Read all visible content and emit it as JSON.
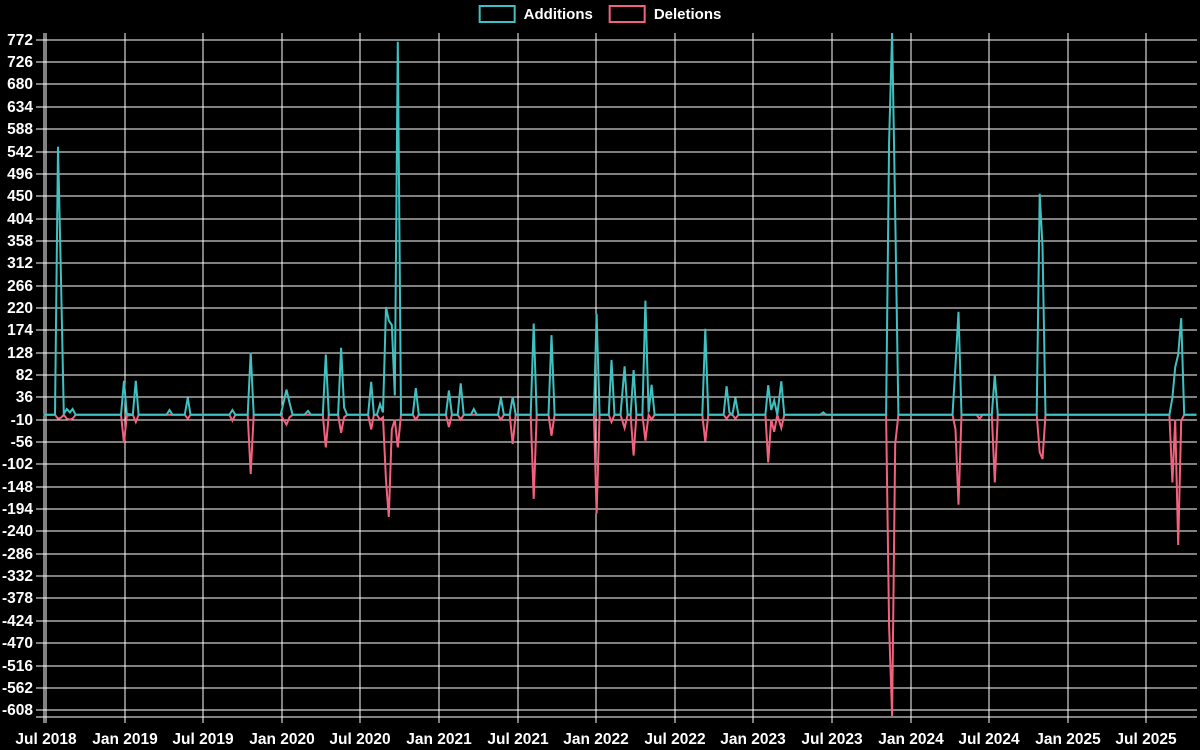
{
  "page": {
    "background": "#000000"
  },
  "chart_data": {
    "type": "line",
    "title": "",
    "legend_position": "top-center",
    "grid": true,
    "x_axis": {
      "tick_labels": [
        "Jul 2018",
        "Jan 2019",
        "Jul 2019",
        "Jan 2020",
        "Jul 2020",
        "Jan 2021",
        "Jul 2021",
        "Jan 2022",
        "Jul 2022",
        "Jan 2023",
        "Jul 2023",
        "Jan 2024",
        "Jul 2024",
        "Jan 2025",
        "Jul 2025"
      ],
      "start_date": "2018-07-01",
      "months_per_tick": 6
    },
    "y_axis": {
      "tick_values": [
        772,
        726,
        680,
        634,
        588,
        542,
        496,
        450,
        404,
        358,
        312,
        266,
        220,
        174,
        128,
        82,
        36,
        -10,
        -56,
        -102,
        -148,
        -194,
        -240,
        -286,
        -332,
        -378,
        -424,
        -470,
        -516,
        -562,
        -608
      ],
      "range": [
        -622,
        786
      ]
    },
    "series": [
      {
        "name": "Additions",
        "color": "#3fc1c1",
        "key": "additions"
      },
      {
        "name": "Deletions",
        "color": "#f4617f",
        "key": "deletions"
      }
    ],
    "columns": [
      "week",
      "additions",
      "deletions"
    ],
    "rows": [
      [
        "2018-06-26",
        0,
        0
      ],
      [
        "2018-07-22",
        0,
        0
      ],
      [
        "2018-07-29",
        552,
        -8
      ],
      [
        "2018-08-05",
        298,
        -6
      ],
      [
        "2018-08-12",
        2,
        0
      ],
      [
        "2018-08-19",
        12,
        -8
      ],
      [
        "2018-08-26",
        5,
        -10
      ],
      [
        "2018-09-02",
        12,
        -8
      ],
      [
        "2018-09-09",
        0,
        0
      ],
      [
        "2018-12-23",
        0,
        0
      ],
      [
        "2018-12-30",
        70,
        -58
      ],
      [
        "2019-01-06",
        2,
        -2
      ],
      [
        "2019-01-20",
        0,
        0
      ],
      [
        "2019-01-27",
        70,
        -15
      ],
      [
        "2019-02-03",
        0,
        0
      ],
      [
        "2019-04-07",
        0,
        0
      ],
      [
        "2019-04-14",
        10,
        0
      ],
      [
        "2019-04-21",
        0,
        0
      ],
      [
        "2019-05-19",
        0,
        0
      ],
      [
        "2019-05-26",
        35,
        -8
      ],
      [
        "2019-06-02",
        0,
        0
      ],
      [
        "2019-09-01",
        0,
        0
      ],
      [
        "2019-09-08",
        10,
        -12
      ],
      [
        "2019-09-15",
        0,
        0
      ],
      [
        "2019-10-13",
        0,
        0
      ],
      [
        "2019-10-20",
        128,
        -122
      ],
      [
        "2019-10-27",
        0,
        0
      ],
      [
        "2019-12-29",
        0,
        0
      ],
      [
        "2020-01-05",
        25,
        -10
      ],
      [
        "2020-01-12",
        52,
        -20
      ],
      [
        "2020-01-19",
        25,
        -5
      ],
      [
        "2020-01-26",
        0,
        0
      ],
      [
        "2020-02-23",
        0,
        0
      ],
      [
        "2020-03-01",
        8,
        0
      ],
      [
        "2020-03-08",
        0,
        0
      ],
      [
        "2020-04-05",
        0,
        0
      ],
      [
        "2020-04-12",
        124,
        -67
      ],
      [
        "2020-04-19",
        0,
        0
      ],
      [
        "2020-05-10",
        0,
        0
      ],
      [
        "2020-05-17",
        138,
        -37
      ],
      [
        "2020-05-24",
        15,
        -5
      ],
      [
        "2020-05-31",
        0,
        0
      ],
      [
        "2020-07-19",
        0,
        0
      ],
      [
        "2020-07-26",
        68,
        -30
      ],
      [
        "2020-08-02",
        0,
        0
      ],
      [
        "2020-08-09",
        0,
        0
      ],
      [
        "2020-08-16",
        22,
        -10
      ],
      [
        "2020-08-23",
        5,
        -5
      ],
      [
        "2020-08-30",
        222,
        -135
      ],
      [
        "2020-09-06",
        194,
        -210
      ],
      [
        "2020-09-13",
        185,
        -30
      ],
      [
        "2020-09-20",
        40,
        -10
      ],
      [
        "2020-09-27",
        768,
        -67
      ],
      [
        "2020-10-04",
        0,
        0
      ],
      [
        "2020-11-01",
        0,
        0
      ],
      [
        "2020-11-08",
        55,
        -10
      ],
      [
        "2020-11-15",
        0,
        0
      ],
      [
        "2021-01-17",
        0,
        0
      ],
      [
        "2021-01-24",
        50,
        -25
      ],
      [
        "2021-01-31",
        0,
        0
      ],
      [
        "2021-02-14",
        0,
        0
      ],
      [
        "2021-02-21",
        65,
        -10
      ],
      [
        "2021-02-28",
        0,
        0
      ],
      [
        "2021-03-14",
        0,
        0
      ],
      [
        "2021-03-21",
        12,
        0
      ],
      [
        "2021-03-28",
        0,
        0
      ],
      [
        "2021-05-16",
        0,
        0
      ],
      [
        "2021-05-23",
        35,
        -10
      ],
      [
        "2021-05-30",
        0,
        0
      ],
      [
        "2021-06-13",
        0,
        0
      ],
      [
        "2021-06-20",
        37,
        -60
      ],
      [
        "2021-06-27",
        0,
        0
      ],
      [
        "2021-08-01",
        0,
        0
      ],
      [
        "2021-08-08",
        188,
        -173
      ],
      [
        "2021-08-15",
        0,
        0
      ],
      [
        "2021-09-12",
        0,
        0
      ],
      [
        "2021-09-19",
        164,
        -43
      ],
      [
        "2021-09-26",
        0,
        0
      ],
      [
        "2021-12-26",
        0,
        0
      ],
      [
        "2022-01-02",
        208,
        -203
      ],
      [
        "2022-01-09",
        0,
        0
      ],
      [
        "2022-01-30",
        0,
        0
      ],
      [
        "2022-02-06",
        113,
        -15
      ],
      [
        "2022-02-13",
        0,
        0
      ],
      [
        "2022-02-27",
        0,
        0
      ],
      [
        "2022-03-06",
        100,
        -27
      ],
      [
        "2022-03-13",
        0,
        0
      ],
      [
        "2022-03-20",
        0,
        0
      ],
      [
        "2022-03-27",
        92,
        -84
      ],
      [
        "2022-04-03",
        0,
        0
      ],
      [
        "2022-04-17",
        0,
        0
      ],
      [
        "2022-04-24",
        235,
        -53
      ],
      [
        "2022-05-01",
        5,
        0
      ],
      [
        "2022-05-08",
        62,
        -10
      ],
      [
        "2022-05-15",
        0,
        0
      ],
      [
        "2022-09-04",
        0,
        0
      ],
      [
        "2022-09-11",
        177,
        -55
      ],
      [
        "2022-09-18",
        0,
        0
      ],
      [
        "2022-10-23",
        0,
        0
      ],
      [
        "2022-10-30",
        59,
        -8
      ],
      [
        "2022-11-06",
        5,
        0
      ],
      [
        "2022-11-13",
        0,
        0
      ],
      [
        "2022-11-20",
        35,
        -8
      ],
      [
        "2022-11-27",
        0,
        0
      ],
      [
        "2023-01-29",
        0,
        0
      ],
      [
        "2023-02-05",
        61,
        -98
      ],
      [
        "2023-02-12",
        10,
        -10
      ],
      [
        "2023-02-19",
        30,
        -35
      ],
      [
        "2023-02-26",
        0,
        0
      ],
      [
        "2023-03-05",
        69,
        -27
      ],
      [
        "2023-03-12",
        0,
        0
      ],
      [
        "2023-06-04",
        0,
        0
      ],
      [
        "2023-06-11",
        5,
        0
      ],
      [
        "2023-06-18",
        0,
        0
      ],
      [
        "2023-11-05",
        0,
        0
      ],
      [
        "2023-11-12",
        562,
        -435
      ],
      [
        "2023-11-19",
        790,
        -620
      ],
      [
        "2023-11-26",
        415,
        -60
      ],
      [
        "2023-12-03",
        0,
        0
      ],
      [
        "2024-04-07",
        0,
        0
      ],
      [
        "2024-04-14",
        102,
        -30
      ],
      [
        "2024-04-21",
        212,
        -185
      ],
      [
        "2024-04-28",
        0,
        0
      ],
      [
        "2024-06-02",
        0,
        0
      ],
      [
        "2024-06-09",
        0,
        -8
      ],
      [
        "2024-06-16",
        0,
        0
      ],
      [
        "2024-07-07",
        0,
        0
      ],
      [
        "2024-07-14",
        82,
        -139
      ],
      [
        "2024-07-21",
        0,
        0
      ],
      [
        "2024-10-20",
        0,
        0
      ],
      [
        "2024-10-27",
        455,
        -77
      ],
      [
        "2024-11-03",
        347,
        -91
      ],
      [
        "2024-11-10",
        0,
        0
      ],
      [
        "2025-08-24",
        0,
        0
      ],
      [
        "2025-08-31",
        35,
        -139
      ],
      [
        "2025-09-07",
        98,
        -10
      ],
      [
        "2025-09-14",
        124,
        -268
      ],
      [
        "2025-09-21",
        199,
        -12
      ],
      [
        "2025-09-28",
        0,
        0
      ],
      [
        "2025-10-26",
        0,
        0
      ]
    ]
  }
}
